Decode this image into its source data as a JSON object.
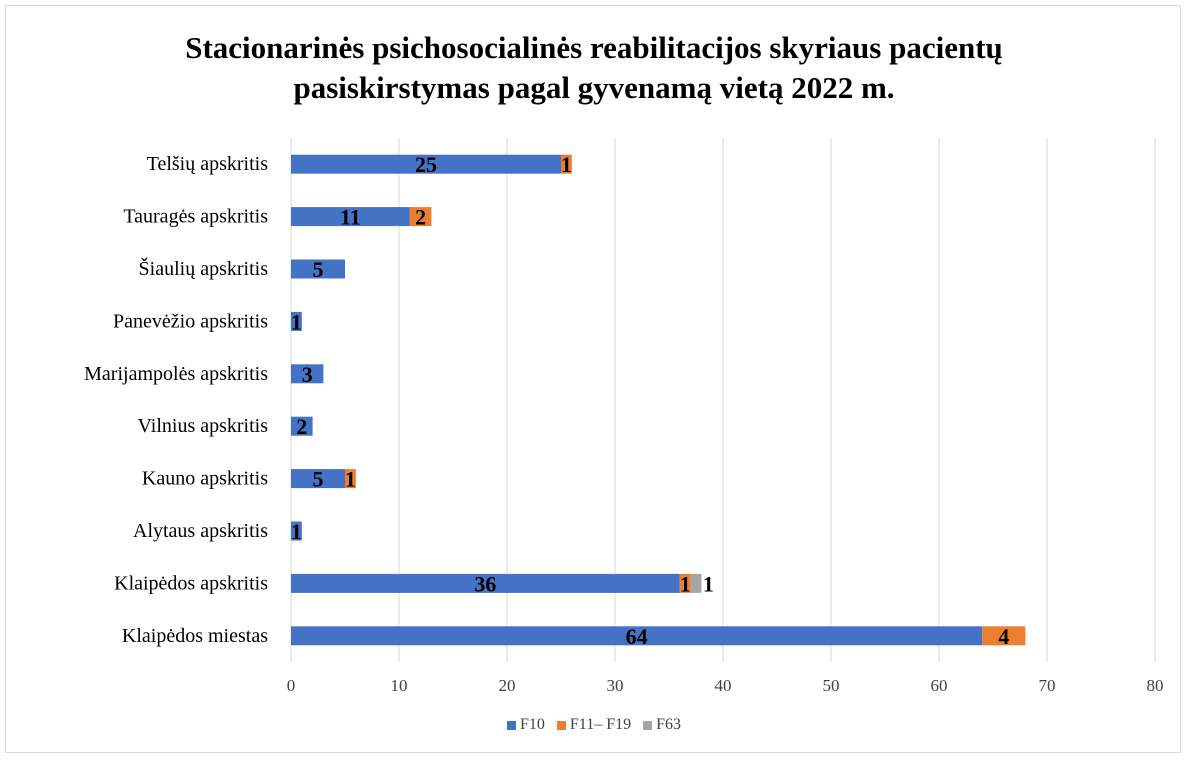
{
  "chart_data": {
    "type": "bar",
    "orientation": "horizontal",
    "stacked": true,
    "title": "Stacionarinės psichosocialinės reabilitacijos skyriaus pacientų pasiskirstymas pagal gyvenamą vietą 2022 m.",
    "title_lines": [
      "Stacionarinės psichosocialinės reabilitacijos skyriaus pacientų",
      "pasiskirstymas pagal gyvenamą vietą 2022 m."
    ],
    "categories": [
      "Telšių apskritis",
      "Tauragės apskritis",
      "Šiaulių apskritis",
      "Panevėžio apskritis",
      "Marijampolės apskritis",
      "Vilnius apskritis",
      "Kauno apskritis",
      "Alytaus apskritis",
      "Klaipėdos apskritis",
      "Klaipėdos miestas"
    ],
    "series": [
      {
        "name": "F10",
        "color": "#4472c4",
        "values": [
          25,
          11,
          5,
          1,
          3,
          2,
          5,
          1,
          36,
          64
        ]
      },
      {
        "name": "F11– F19",
        "color": "#ed7d31",
        "values": [
          1,
          2,
          0,
          0,
          0,
          0,
          1,
          0,
          1,
          4
        ]
      },
      {
        "name": "F63",
        "color": "#a5a5a5",
        "values": [
          0,
          0,
          0,
          0,
          0,
          0,
          0,
          0,
          1,
          0
        ]
      }
    ],
    "xlim": [
      0,
      80
    ],
    "x_ticks": [
      "0",
      "10",
      "20",
      "30",
      "40",
      "50",
      "60",
      "70",
      "80"
    ],
    "grid": true,
    "legend_position": "bottom",
    "data_labels": true
  }
}
